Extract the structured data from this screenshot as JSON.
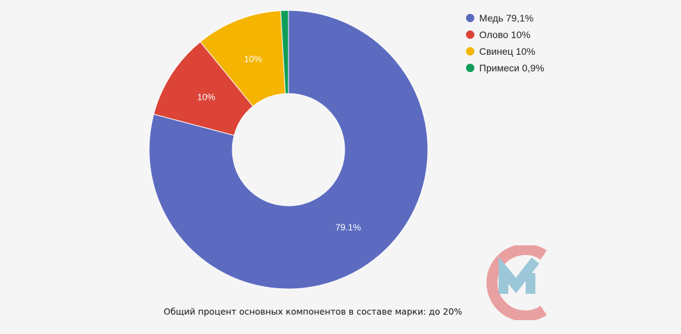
{
  "chart_data": {
    "type": "pie",
    "donut": true,
    "categories": [
      "Медь",
      "Олово",
      "Свинец",
      "Примеси"
    ],
    "values": [
      79.1,
      10,
      10,
      0.9
    ],
    "slice_labels": [
      "79.1%",
      "10%",
      "10%",
      ""
    ],
    "legend": {
      "position": "top-right",
      "entries": [
        "Медь 79,1%",
        "Олово 10%",
        "Свинец 10%",
        "Примеси 0,9%"
      ]
    },
    "colors": [
      "#5c6bc0",
      "#db4437",
      "#f4b400",
      "#0f9d58"
    ]
  },
  "caption": "Общий процент основных компонентов в составе марки: до 20%",
  "logo": {
    "name": "logo-icon",
    "colors": [
      "#e8a0a0",
      "#9cc7d8"
    ]
  }
}
